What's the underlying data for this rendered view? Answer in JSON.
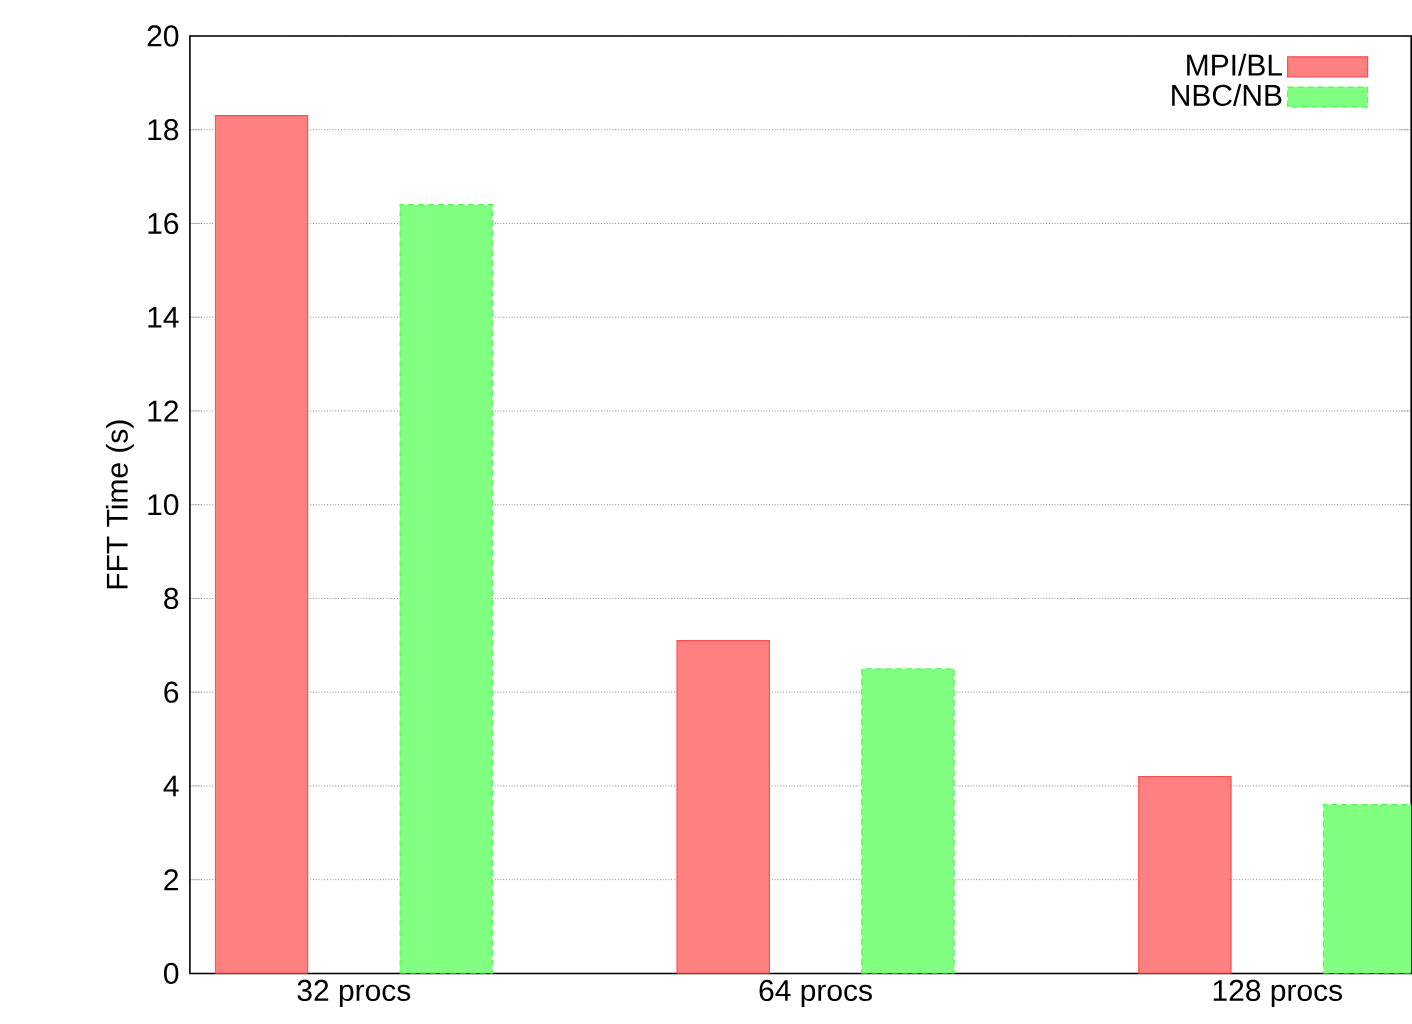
{
  "chart_data": {
    "type": "bar",
    "ylabel": "FFT Time (s)",
    "categories": [
      "32 procs",
      "64 procs",
      "128 procs"
    ],
    "series": [
      {
        "name": "MPI/BL",
        "color": "#ff8080",
        "values": [
          18.3,
          7.1,
          4.2
        ]
      },
      {
        "name": "NBC/NB",
        "color": "#80ff80",
        "values": [
          16.4,
          6.5,
          3.6
        ]
      }
    ],
    "ylim": [
      0,
      20
    ],
    "yticks": [
      0,
      2,
      4,
      6,
      8,
      10,
      12,
      14,
      16,
      18,
      20
    ],
    "grid": "y",
    "legend": "top right"
  }
}
